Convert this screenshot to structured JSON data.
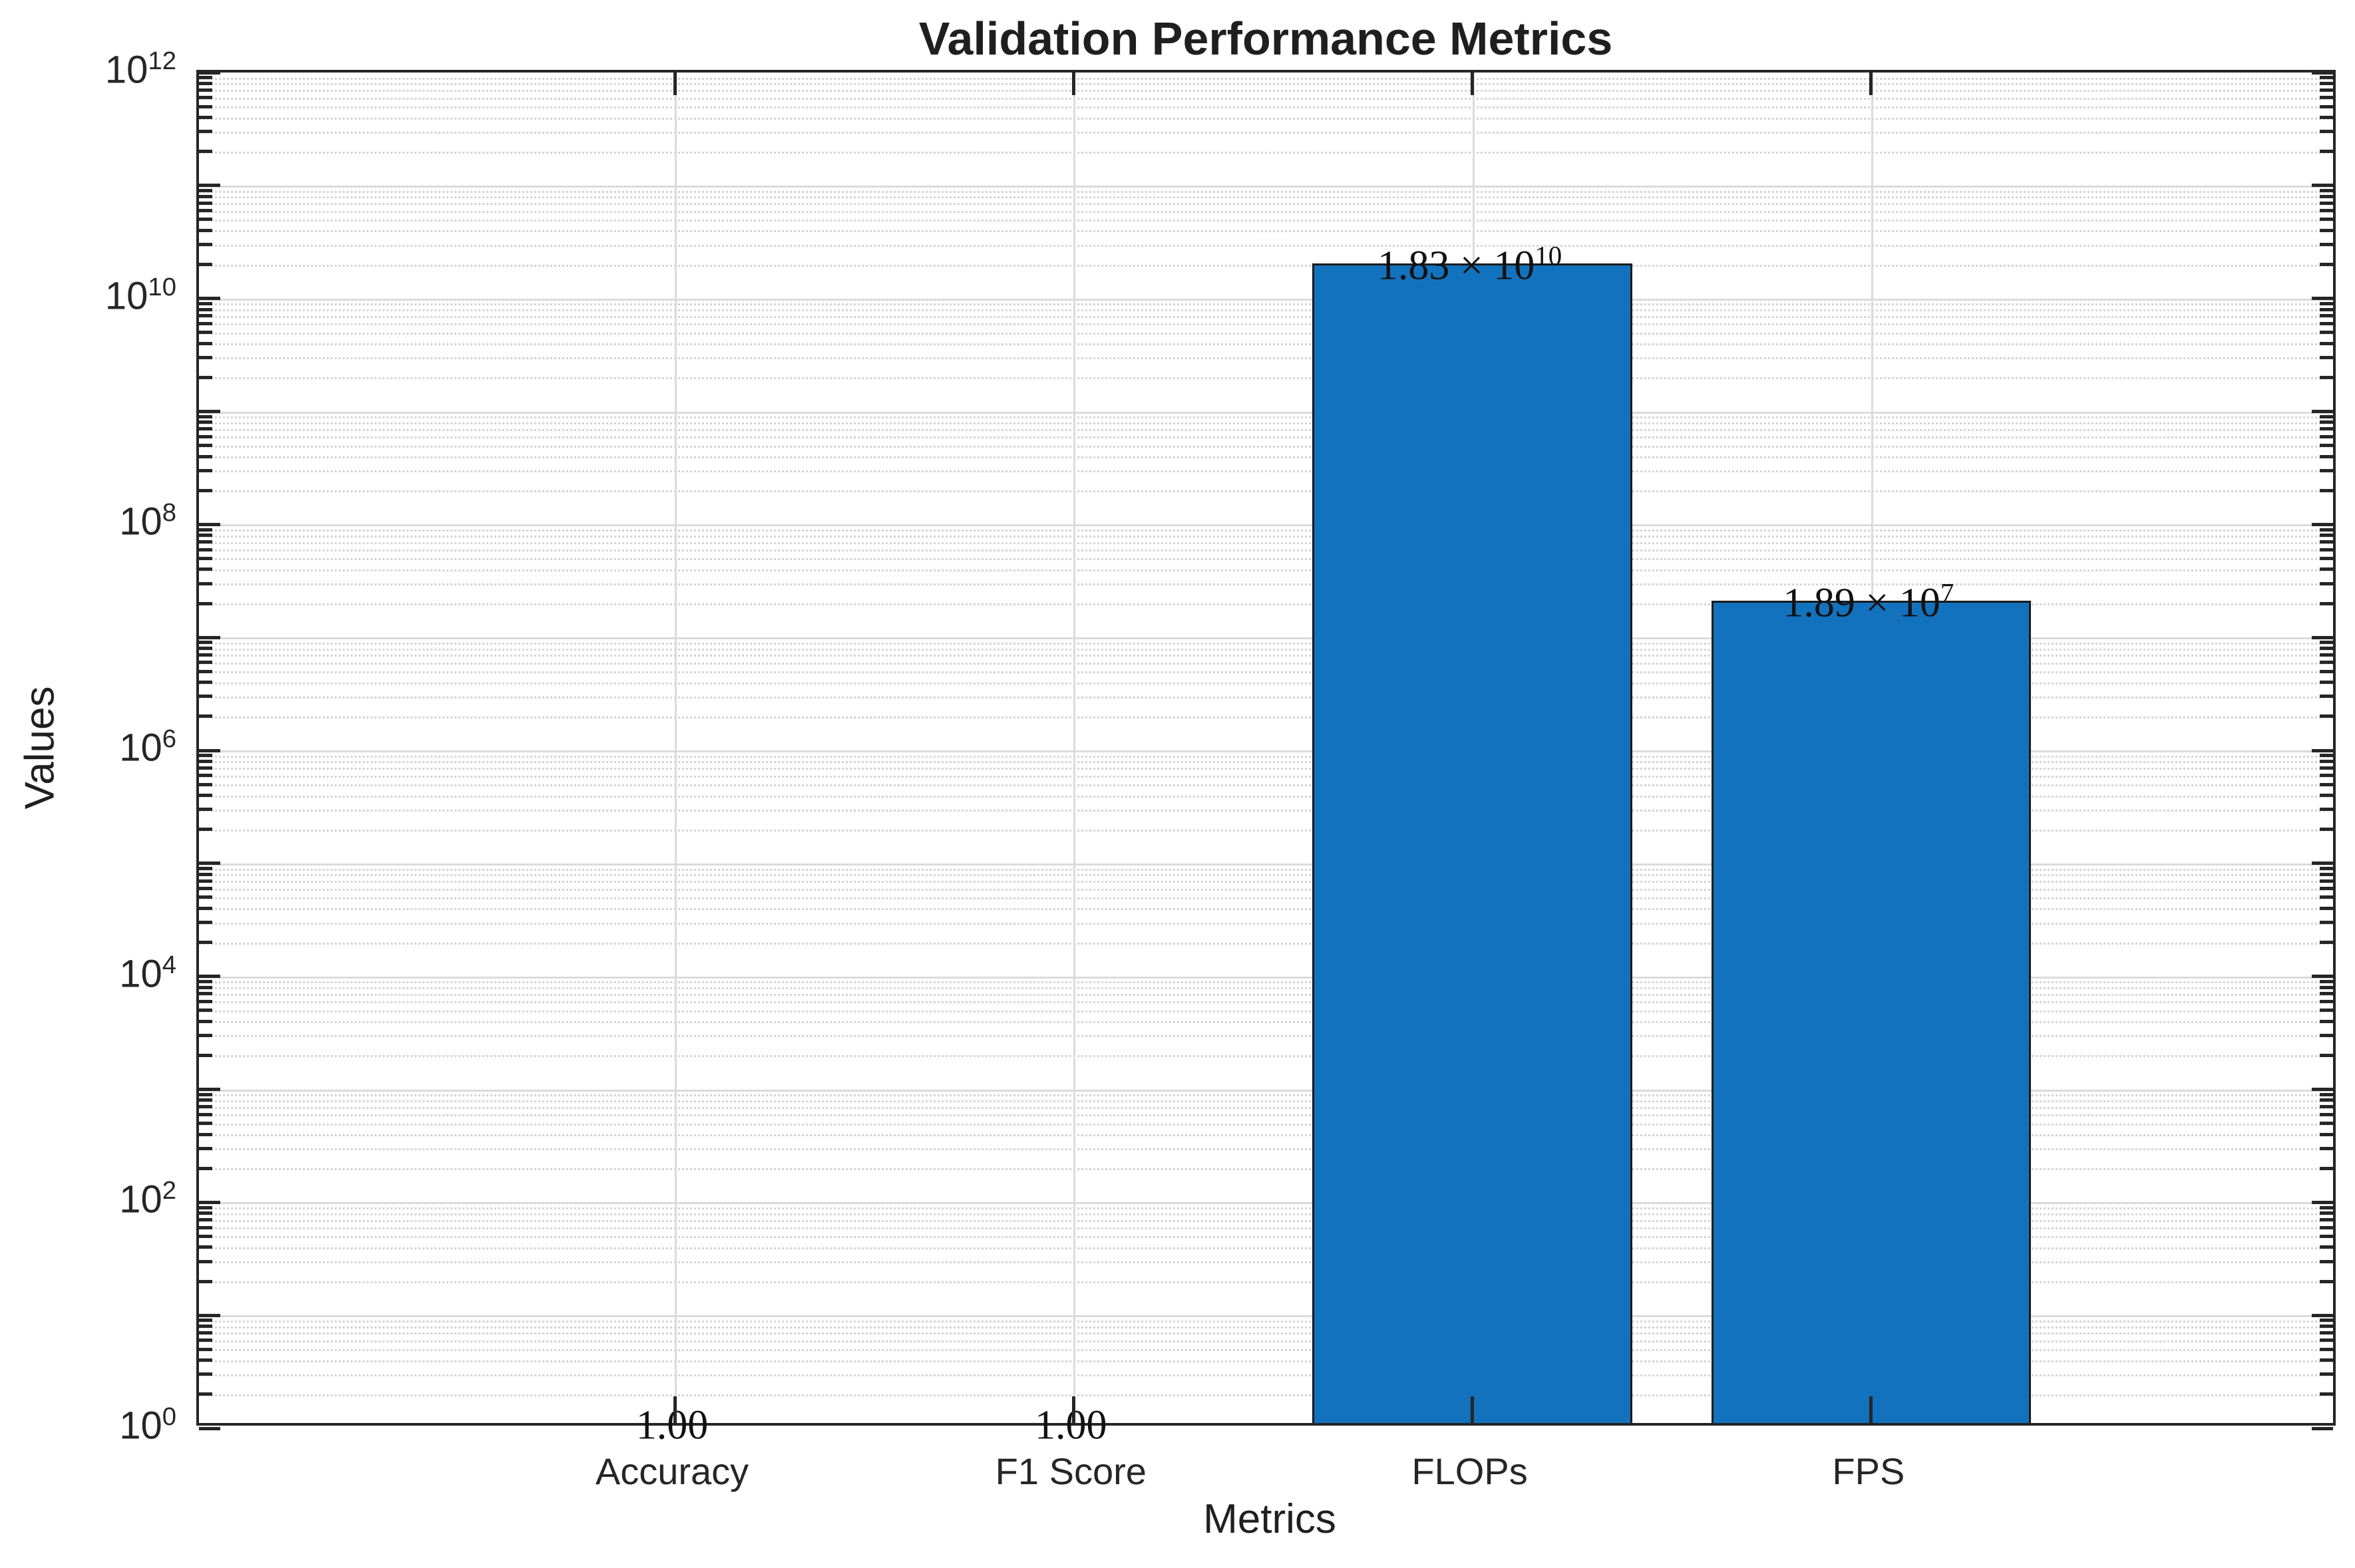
{
  "chart_data": {
    "type": "bar",
    "title": "Validation Performance Metrics",
    "xlabel": "Metrics",
    "ylabel": "Values",
    "categories": [
      "Accuracy",
      "F1 Score",
      "FLOPs",
      "FPS"
    ],
    "values": [
      1.0,
      1.0,
      18300000000,
      18900000
    ],
    "value_labels": [
      {
        "base": "1.00",
        "exp": ""
      },
      {
        "base": "1.00",
        "exp": ""
      },
      {
        "base": "1.83 × 10",
        "exp": "10"
      },
      {
        "base": "1.89 × 10",
        "exp": "7"
      }
    ],
    "yscale": "log",
    "ylim": [
      1,
      1000000000000
    ],
    "y_tick_exponents": [
      0,
      2,
      4,
      6,
      8,
      10,
      12
    ],
    "y_tick_base": "10",
    "grid": true,
    "legend": "none",
    "bar_color": "#1272bd",
    "bar_edge_color": "#1a1a1a",
    "axis_color": "#262626",
    "major_grid_color": "#dbdbdb",
    "minor_grid_color": "#d4d4d4"
  }
}
